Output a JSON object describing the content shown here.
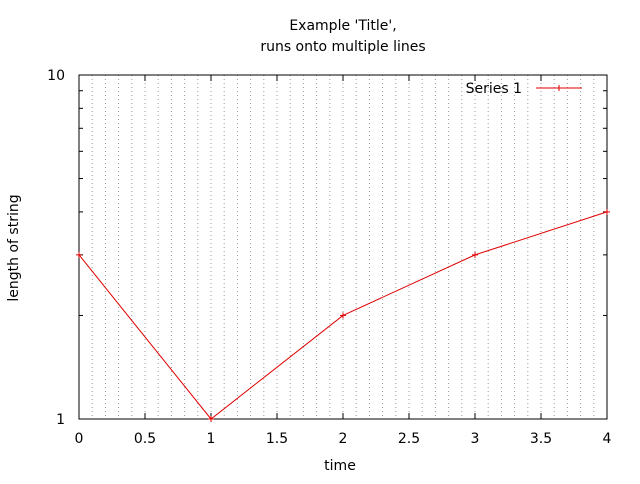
{
  "chart_data": {
    "type": "line",
    "title_lines": [
      "Example 'Title',",
      "runs onto multiple lines"
    ],
    "xlabel": "time",
    "ylabel": "length of string",
    "xlim": [
      0,
      4
    ],
    "ylim": [
      1,
      10
    ],
    "yscale": "log",
    "x_ticks": [
      0,
      0.5,
      1,
      1.5,
      2,
      2.5,
      3,
      3.5,
      4
    ],
    "x_tick_labels": [
      "0",
      "0.5",
      "1",
      "1.5",
      "2",
      "2.5",
      "3",
      "3.5",
      "4"
    ],
    "y_ticks": [
      1,
      10
    ],
    "y_tick_labels": [
      "1",
      "10"
    ],
    "grid": "vertical dotted, minor x",
    "legend_position": "top-right",
    "series_color": "#e00000",
    "series": [
      {
        "name": "Series 1",
        "x": [
          0,
          1,
          2,
          3,
          4
        ],
        "y": [
          3,
          1,
          2,
          3,
          4
        ]
      }
    ]
  }
}
